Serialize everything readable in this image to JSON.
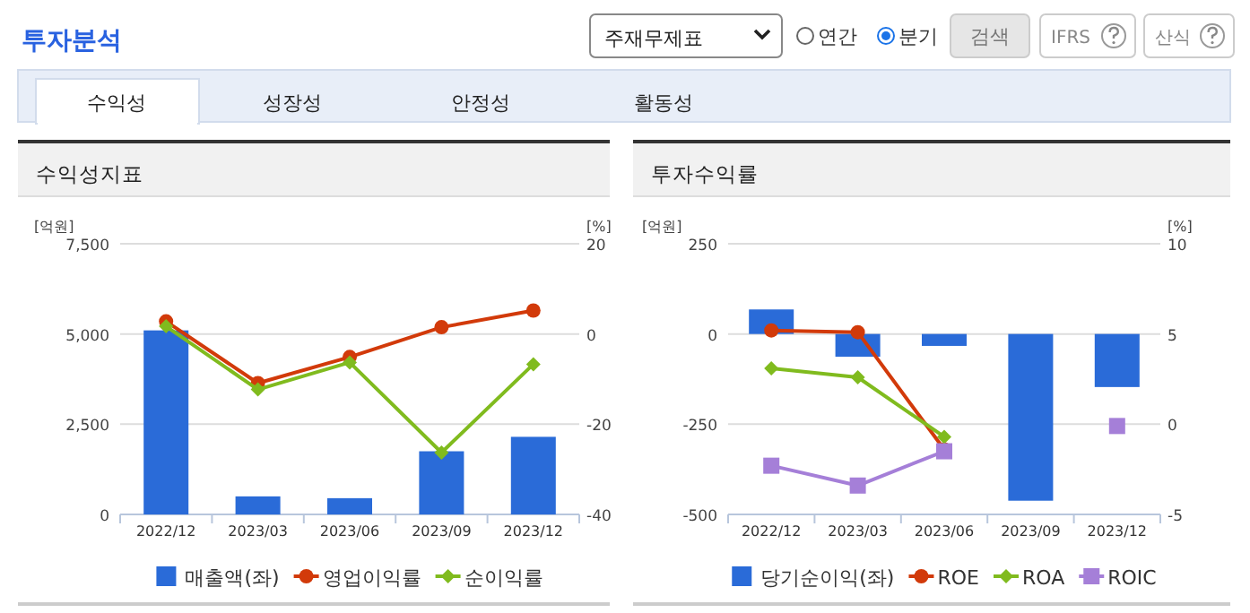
{
  "chart_data": [
    {
      "type": "other",
      "annotations": [
        "투자분석",
        "주재무제표",
        "연간",
        "분기",
        "검색",
        "IFRS",
        "산식",
        "수익성",
        "성장성",
        "안정성",
        "활동성"
      ]
    },
    {
      "type": "bar",
      "title": "수익성지표",
      "categories": [
        "2022/12",
        "2023/03",
        "2023/06",
        "2023/09",
        "2023/12"
      ],
      "ylabel": "[억원]",
      "y2label": "[%]",
      "ylim": [
        0,
        7500
      ],
      "yticks": [
        0,
        {
          "value": 2500,
          "label": "2,500"
        },
        {
          "value": 5000,
          "label": "5,000"
        },
        {
          "value": 7500,
          "label": "7,500"
        }
      ],
      "y2lim": [
        -40,
        20
      ],
      "y2ticks": [
        -40,
        -20,
        0,
        20
      ],
      "grid": "y",
      "legend": "bottom",
      "series": [
        {
          "name": "매출액(좌)",
          "type": "bar",
          "color": "#2a6bd8",
          "values": [
            5100,
            500,
            450,
            1750,
            2150
          ]
        },
        {
          "name": "영업이익률",
          "type": "line",
          "axis": "y2",
          "marker": "circle",
          "color": "#d23a0a",
          "values": [
            2.8,
            -10.9,
            -5.1,
            1.5,
            5.2
          ]
        },
        {
          "name": "순이익률",
          "type": "line",
          "axis": "y2",
          "marker": "diamond",
          "color": "#80bb1e",
          "values": [
            1.7,
            -12.3,
            -6.3,
            -26.3,
            -6.7
          ]
        }
      ]
    },
    {
      "type": "bar",
      "title": "투자수익률",
      "categories": [
        "2022/12",
        "2023/03",
        "2023/06",
        "2023/09",
        "2023/12"
      ],
      "ylabel": "[억원]",
      "y2label": "[%]",
      "ylim": [
        -500,
        250
      ],
      "yticks": [
        -500,
        -250,
        0,
        250
      ],
      "y2lim": [
        -5,
        10
      ],
      "y2ticks": [
        -5,
        0,
        5,
        10
      ],
      "grid": "y",
      "legend": "bottom",
      "series": [
        {
          "name": "당기순이익(좌)",
          "type": "bar",
          "color": "#2a6bd8",
          "values": [
            68,
            -63,
            -33,
            -462,
            -147
          ]
        },
        {
          "name": "ROE",
          "type": "line",
          "axis": "y2",
          "marker": "circle",
          "color": "#d23a0a",
          "values": [
            5.2,
            5.1,
            -1.4,
            null,
            null
          ]
        },
        {
          "name": "ROA",
          "type": "line",
          "axis": "y2",
          "marker": "diamond",
          "color": "#80bb1e",
          "values": [
            3.1,
            2.6,
            -0.7,
            null,
            null
          ]
        },
        {
          "name": "ROIC",
          "type": "line",
          "axis": "y2",
          "marker": "square",
          "color": "#a57fd8",
          "values": [
            -2.3,
            -3.4,
            -1.5,
            null,
            -0.1
          ]
        }
      ]
    }
  ]
}
